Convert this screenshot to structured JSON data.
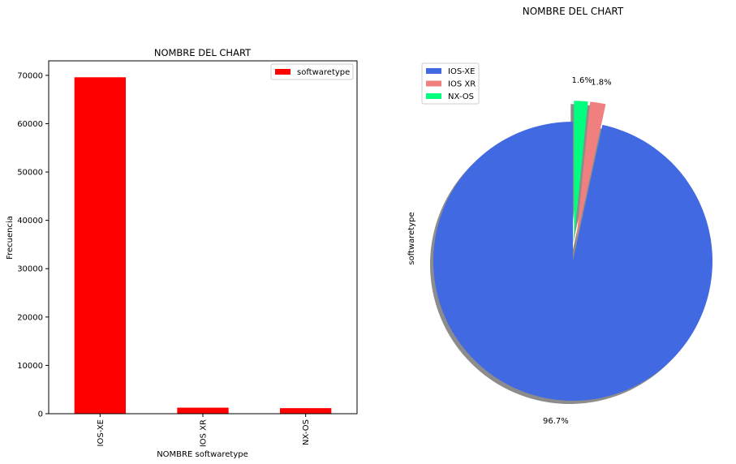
{
  "figure": {
    "suptitle": "NOMBRE DEL CHART"
  },
  "chart_data": [
    {
      "type": "bar",
      "title": "NOMBRE DEL CHART",
      "xlabel": "NOMBRE softwaretype",
      "ylabel": "Frecuencia",
      "categories": [
        "IOS-XE",
        "IOS XR",
        "NX-OS"
      ],
      "series": [
        {
          "name": "softwaretype",
          "values": [
            69600,
            1250,
            1150
          ],
          "color": "#ff0000"
        }
      ],
      "ylim": [
        0,
        73000
      ],
      "yticks": [
        0,
        10000,
        20000,
        30000,
        40000,
        50000,
        60000,
        70000
      ],
      "legend": "top-right",
      "grid": false
    },
    {
      "type": "pie",
      "ylabel": "softwaretype",
      "labels": [
        "IOS-XE",
        "IOS XR",
        "NX-OS"
      ],
      "values": [
        96.7,
        1.8,
        1.6
      ],
      "autopct": [
        "96.7%",
        "1.8%",
        "1.6%"
      ],
      "colors": [
        "#4169e1",
        "#f08080",
        "#00ff7f"
      ],
      "explode": [
        0,
        0.15,
        0.15
      ],
      "startangle": 90,
      "shadow": true,
      "legend": "top-left"
    }
  ]
}
